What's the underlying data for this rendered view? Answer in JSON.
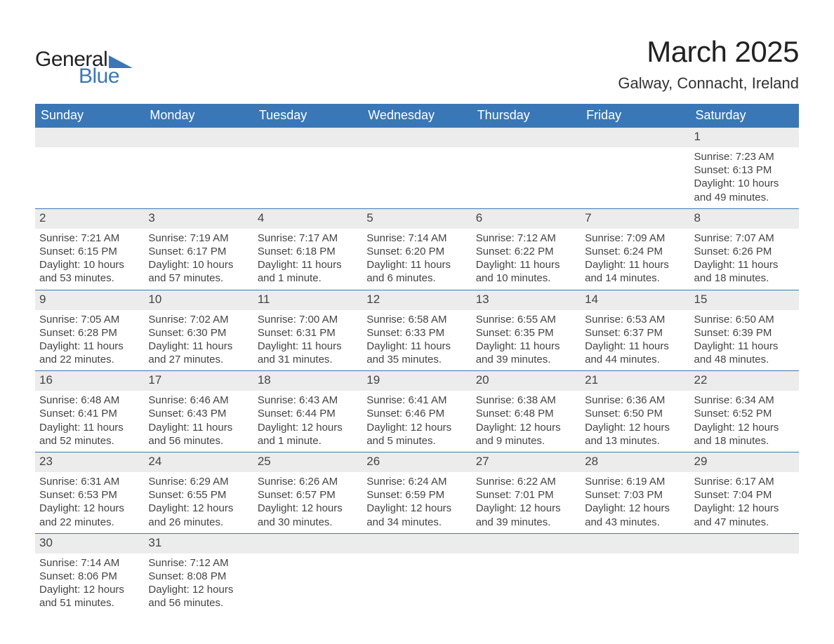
{
  "brand": {
    "part1": "General",
    "part2": "Blue"
  },
  "title": "March 2025",
  "subtitle": "Galway, Connacht, Ireland",
  "colors": {
    "header_bg": "#3a77b7",
    "header_text": "#ffffff",
    "daynum_bg": "#ececec",
    "border": "#3a77b7",
    "text": "#444444",
    "page_bg": "#ffffff"
  },
  "fontsize": {
    "title": 42,
    "subtitle": 22,
    "weekday": 18,
    "daynum": 17,
    "detail": 15
  },
  "weekdays": [
    "Sunday",
    "Monday",
    "Tuesday",
    "Wednesday",
    "Thursday",
    "Friday",
    "Saturday"
  ],
  "weeks": [
    [
      null,
      null,
      null,
      null,
      null,
      null,
      {
        "n": "1",
        "sr": "7:23 AM",
        "ss": "6:13 PM",
        "dl": "10 hours and 49 minutes."
      }
    ],
    [
      {
        "n": "2",
        "sr": "7:21 AM",
        "ss": "6:15 PM",
        "dl": "10 hours and 53 minutes."
      },
      {
        "n": "3",
        "sr": "7:19 AM",
        "ss": "6:17 PM",
        "dl": "10 hours and 57 minutes."
      },
      {
        "n": "4",
        "sr": "7:17 AM",
        "ss": "6:18 PM",
        "dl": "11 hours and 1 minute."
      },
      {
        "n": "5",
        "sr": "7:14 AM",
        "ss": "6:20 PM",
        "dl": "11 hours and 6 minutes."
      },
      {
        "n": "6",
        "sr": "7:12 AM",
        "ss": "6:22 PM",
        "dl": "11 hours and 10 minutes."
      },
      {
        "n": "7",
        "sr": "7:09 AM",
        "ss": "6:24 PM",
        "dl": "11 hours and 14 minutes."
      },
      {
        "n": "8",
        "sr": "7:07 AM",
        "ss": "6:26 PM",
        "dl": "11 hours and 18 minutes."
      }
    ],
    [
      {
        "n": "9",
        "sr": "7:05 AM",
        "ss": "6:28 PM",
        "dl": "11 hours and 22 minutes."
      },
      {
        "n": "10",
        "sr": "7:02 AM",
        "ss": "6:30 PM",
        "dl": "11 hours and 27 minutes."
      },
      {
        "n": "11",
        "sr": "7:00 AM",
        "ss": "6:31 PM",
        "dl": "11 hours and 31 minutes."
      },
      {
        "n": "12",
        "sr": "6:58 AM",
        "ss": "6:33 PM",
        "dl": "11 hours and 35 minutes."
      },
      {
        "n": "13",
        "sr": "6:55 AM",
        "ss": "6:35 PM",
        "dl": "11 hours and 39 minutes."
      },
      {
        "n": "14",
        "sr": "6:53 AM",
        "ss": "6:37 PM",
        "dl": "11 hours and 44 minutes."
      },
      {
        "n": "15",
        "sr": "6:50 AM",
        "ss": "6:39 PM",
        "dl": "11 hours and 48 minutes."
      }
    ],
    [
      {
        "n": "16",
        "sr": "6:48 AM",
        "ss": "6:41 PM",
        "dl": "11 hours and 52 minutes."
      },
      {
        "n": "17",
        "sr": "6:46 AM",
        "ss": "6:43 PM",
        "dl": "11 hours and 56 minutes."
      },
      {
        "n": "18",
        "sr": "6:43 AM",
        "ss": "6:44 PM",
        "dl": "12 hours and 1 minute."
      },
      {
        "n": "19",
        "sr": "6:41 AM",
        "ss": "6:46 PM",
        "dl": "12 hours and 5 minutes."
      },
      {
        "n": "20",
        "sr": "6:38 AM",
        "ss": "6:48 PM",
        "dl": "12 hours and 9 minutes."
      },
      {
        "n": "21",
        "sr": "6:36 AM",
        "ss": "6:50 PM",
        "dl": "12 hours and 13 minutes."
      },
      {
        "n": "22",
        "sr": "6:34 AM",
        "ss": "6:52 PM",
        "dl": "12 hours and 18 minutes."
      }
    ],
    [
      {
        "n": "23",
        "sr": "6:31 AM",
        "ss": "6:53 PM",
        "dl": "12 hours and 22 minutes."
      },
      {
        "n": "24",
        "sr": "6:29 AM",
        "ss": "6:55 PM",
        "dl": "12 hours and 26 minutes."
      },
      {
        "n": "25",
        "sr": "6:26 AM",
        "ss": "6:57 PM",
        "dl": "12 hours and 30 minutes."
      },
      {
        "n": "26",
        "sr": "6:24 AM",
        "ss": "6:59 PM",
        "dl": "12 hours and 34 minutes."
      },
      {
        "n": "27",
        "sr": "6:22 AM",
        "ss": "7:01 PM",
        "dl": "12 hours and 39 minutes."
      },
      {
        "n": "28",
        "sr": "6:19 AM",
        "ss": "7:03 PM",
        "dl": "12 hours and 43 minutes."
      },
      {
        "n": "29",
        "sr": "6:17 AM",
        "ss": "7:04 PM",
        "dl": "12 hours and 47 minutes."
      }
    ],
    [
      {
        "n": "30",
        "sr": "7:14 AM",
        "ss": "8:06 PM",
        "dl": "12 hours and 51 minutes."
      },
      {
        "n": "31",
        "sr": "7:12 AM",
        "ss": "8:08 PM",
        "dl": "12 hours and 56 minutes."
      },
      null,
      null,
      null,
      null,
      null
    ]
  ],
  "labels": {
    "sunrise": "Sunrise: ",
    "sunset": "Sunset: ",
    "daylight": "Daylight: "
  }
}
